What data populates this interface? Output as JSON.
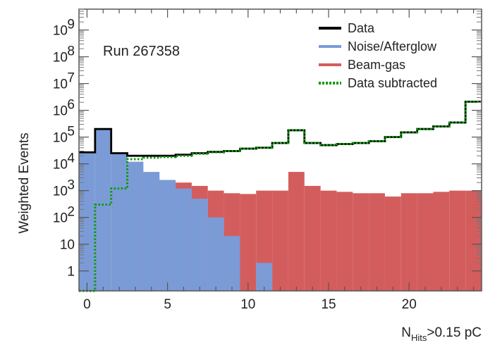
{
  "chart_data": {
    "type": "histogram",
    "run_label": "Run 267358",
    "ylabel": "Weighted Events",
    "xlabel": {
      "main": "N",
      "subscript": "Hits",
      "suffix": ">0.15 pC"
    },
    "x_range": [
      -0.5,
      24.5
    ],
    "y_scale": "log",
    "y_range": [
      0.18,
      6000000000
    ],
    "x_ticks": [
      {
        "value": 0,
        "label": "0"
      },
      {
        "value": 5,
        "label": "5"
      },
      {
        "value": 10,
        "label": "10"
      },
      {
        "value": 15,
        "label": "15"
      },
      {
        "value": 20,
        "label": "20"
      }
    ],
    "y_ticks": [
      {
        "value": 1,
        "label": "1"
      },
      {
        "value": 10,
        "label": "10"
      },
      {
        "value": 100,
        "label": "10",
        "exp": "2"
      },
      {
        "value": 1000,
        "label": "10",
        "exp": "3"
      },
      {
        "value": 10000,
        "label": "10",
        "exp": "4"
      },
      {
        "value": 100000,
        "label": "10",
        "exp": "5"
      },
      {
        "value": 1000000,
        "label": "10",
        "exp": "6"
      },
      {
        "value": 10000000,
        "label": "10",
        "exp": "7"
      },
      {
        "value": 100000000,
        "label": "10",
        "exp": "8"
      },
      {
        "value": 1000000000,
        "label": "10",
        "exp": "9"
      }
    ],
    "bins": [
      -0.5,
      0.5,
      1.5,
      2.5,
      3.5,
      4.5,
      5.5,
      6.5,
      7.5,
      8.5,
      9.5,
      10.5,
      11.5,
      12.5,
      13.5,
      14.5,
      15.5,
      16.5,
      17.5,
      18.5,
      19.5,
      20.5,
      21.5,
      22.5,
      23.5,
      24.5
    ],
    "series": [
      {
        "name": "Data",
        "color": "#000000",
        "style": "step",
        "values": [
          27000,
          200000,
          25000,
          20000,
          20000,
          20000,
          22000,
          25000,
          28000,
          30000,
          37000,
          40000,
          60000,
          180000,
          60000,
          50000,
          55000,
          60000,
          70000,
          100000,
          150000,
          200000,
          250000,
          350000,
          2100000
        ]
      },
      {
        "name": "Noise/Afterglow",
        "color": "#7b9bd6",
        "style": "filled",
        "values": [
          27000,
          200000,
          25000,
          12000,
          5000,
          2500,
          1200,
          500,
          100,
          20,
          0,
          2,
          0,
          0,
          0,
          0,
          0,
          0,
          0,
          0,
          0,
          0,
          0,
          0,
          0
        ]
      },
      {
        "name": "Beam-gas",
        "color": "#d35d5d",
        "style": "filled",
        "values": [
          0,
          0,
          0,
          5000,
          3000,
          2500,
          2000,
          1500,
          1000,
          800,
          750,
          1000,
          1000,
          5000,
          1500,
          1000,
          900,
          800,
          800,
          600,
          800,
          800,
          900,
          1000,
          1000
        ]
      },
      {
        "name": "Data subtracted",
        "color": "#0a9a0a",
        "style": "dotted-step",
        "values": [
          0,
          300,
          1200,
          15000,
          17000,
          18000,
          20000,
          24000,
          27000,
          30000,
          37000,
          40000,
          60000,
          180000,
          60000,
          50000,
          55000,
          60000,
          70000,
          100000,
          150000,
          200000,
          250000,
          350000,
          2100000
        ]
      }
    ],
    "legend_position": "top-right"
  }
}
